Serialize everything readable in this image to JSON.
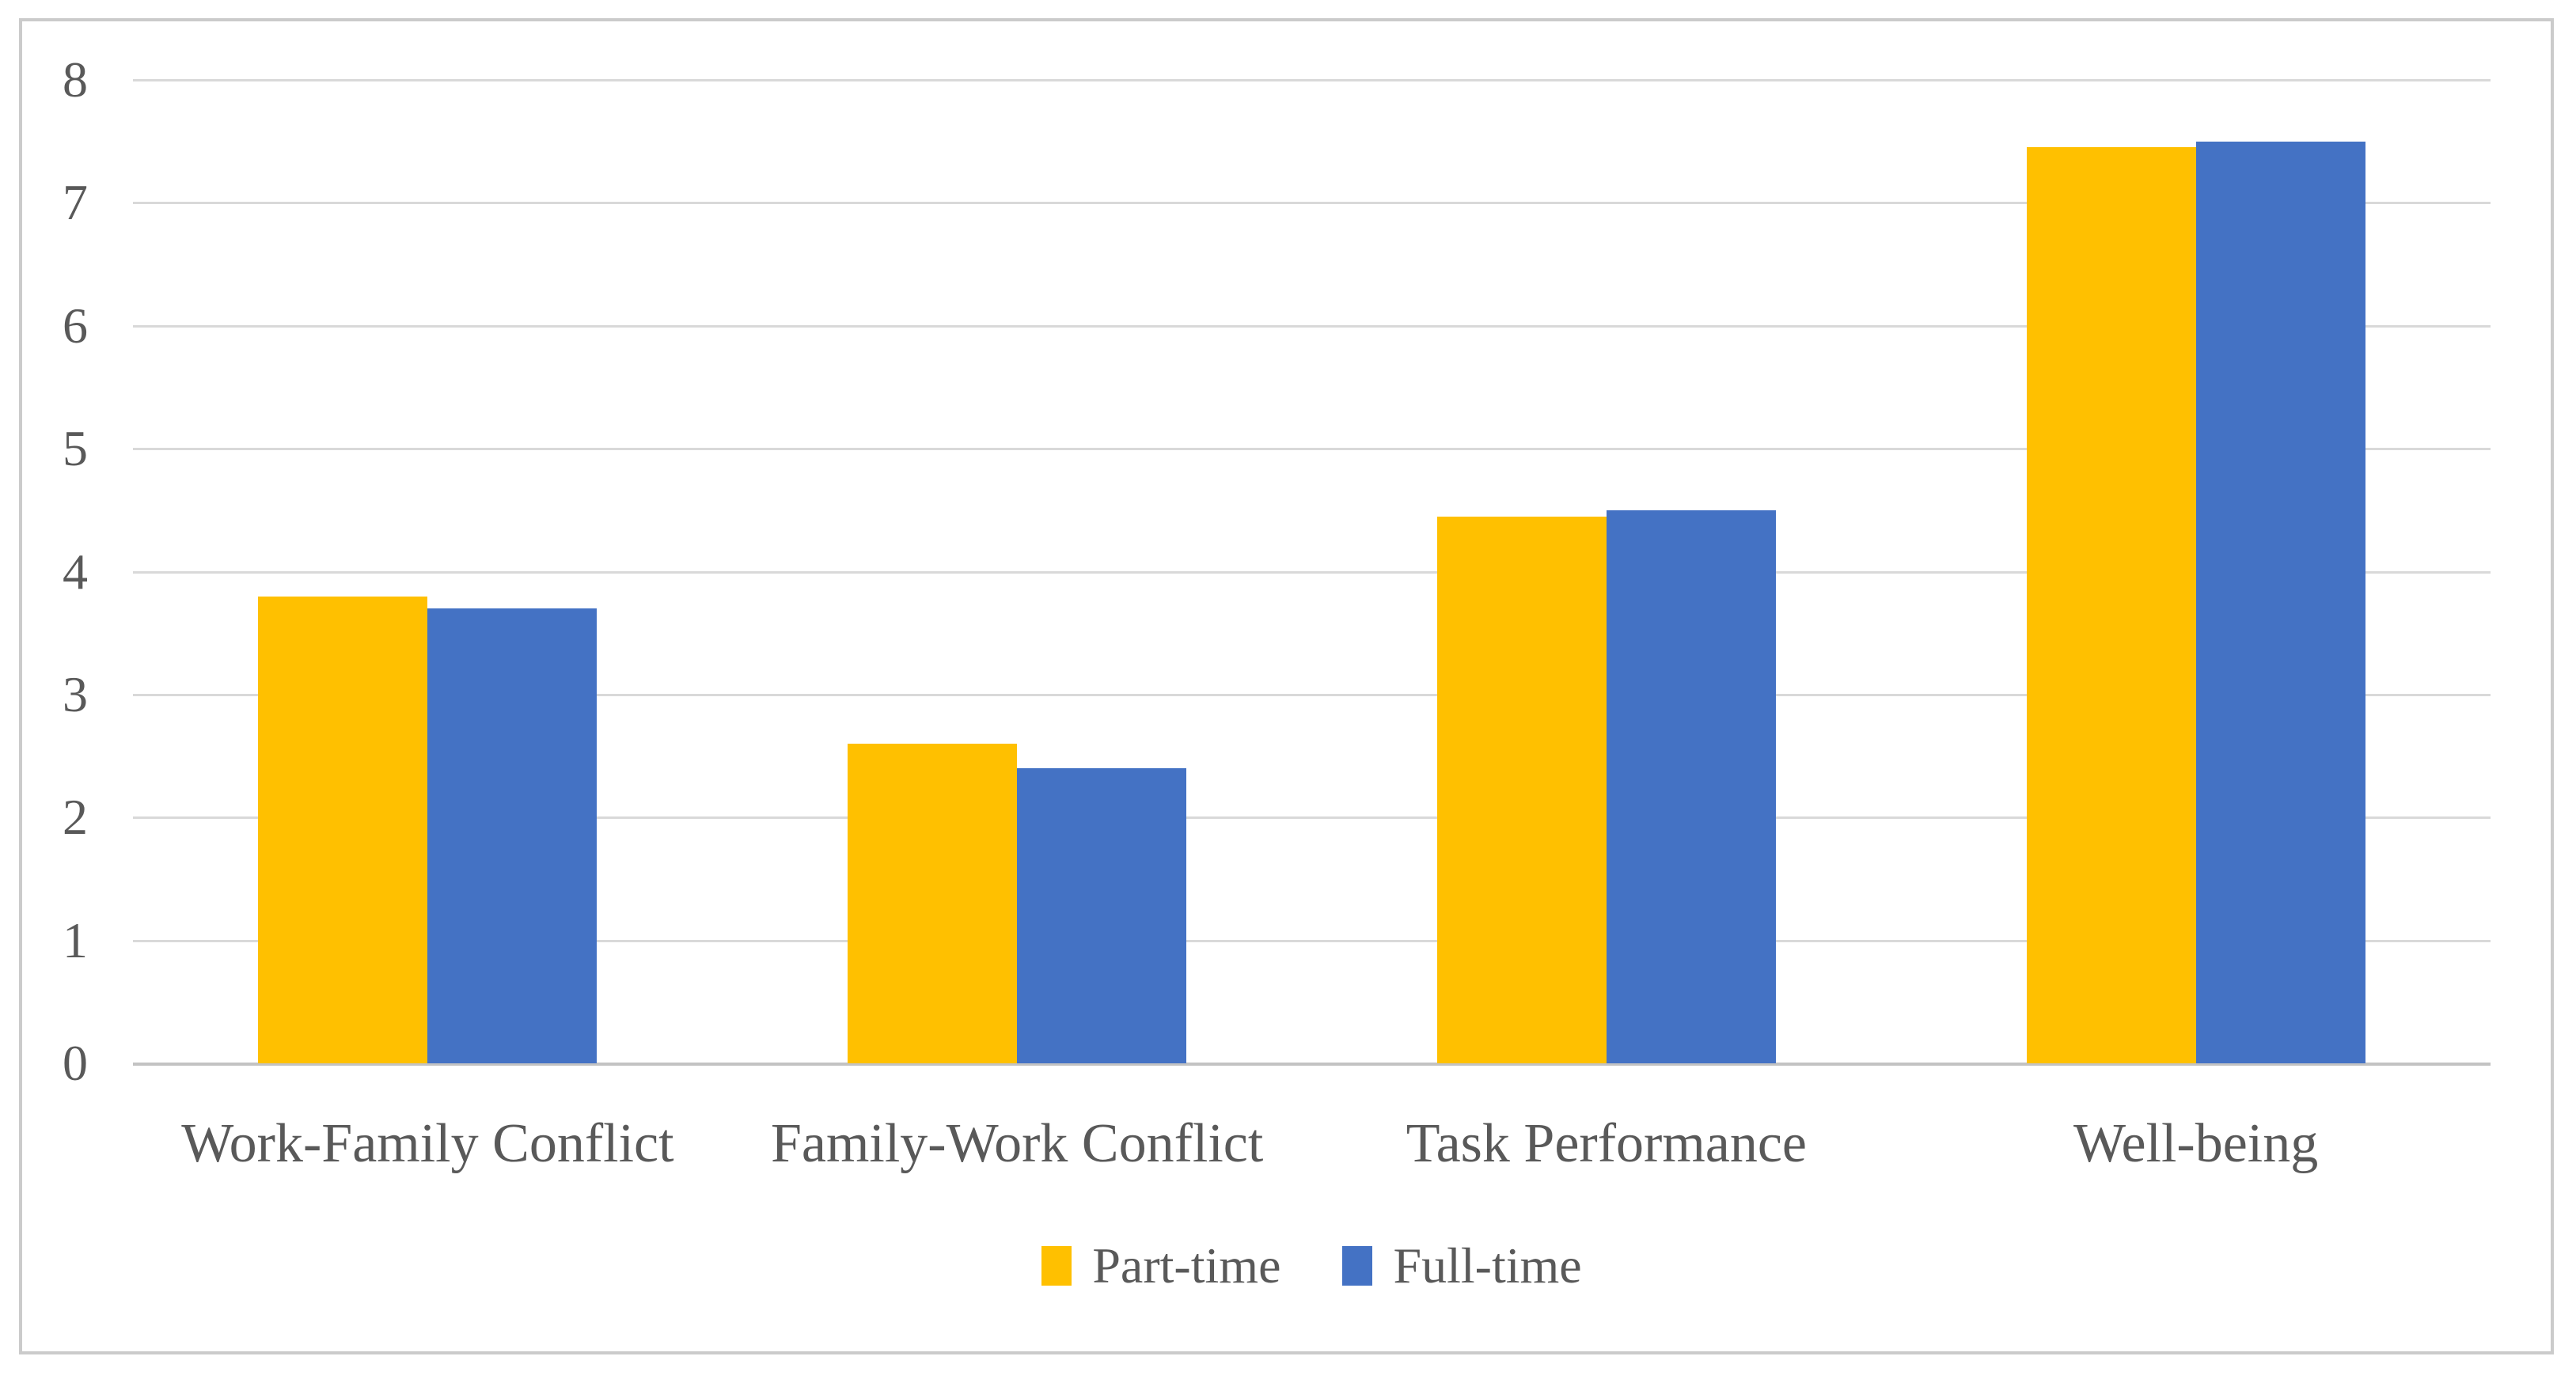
{
  "figure": {
    "background": "#FFFFFF",
    "border_color": "#CBCBCB",
    "text_color": "#595959",
    "gridline_color": "#D9D9D9",
    "axis_line_color": "#C3C3C3"
  },
  "chart_data": {
    "type": "bar",
    "title": "",
    "categories": [
      "Work-Family Conflict",
      "Family-Work Conflict",
      "Task Performance",
      "Well-being"
    ],
    "series": [
      {
        "name": "Part-time",
        "color": "#FFC000",
        "values": [
          3.8,
          2.6,
          4.45,
          7.45
        ]
      },
      {
        "name": "Full-time",
        "color": "#4472C4",
        "values": [
          3.7,
          2.4,
          4.5,
          7.5
        ]
      }
    ],
    "ylim": [
      0,
      8
    ],
    "yticks": [
      "0",
      "1",
      "2",
      "3",
      "4",
      "5",
      "6",
      "7",
      "8"
    ],
    "ytick_interval": 1,
    "grid": true,
    "legend_position": "bottom",
    "xlabel": "",
    "ylabel": ""
  }
}
